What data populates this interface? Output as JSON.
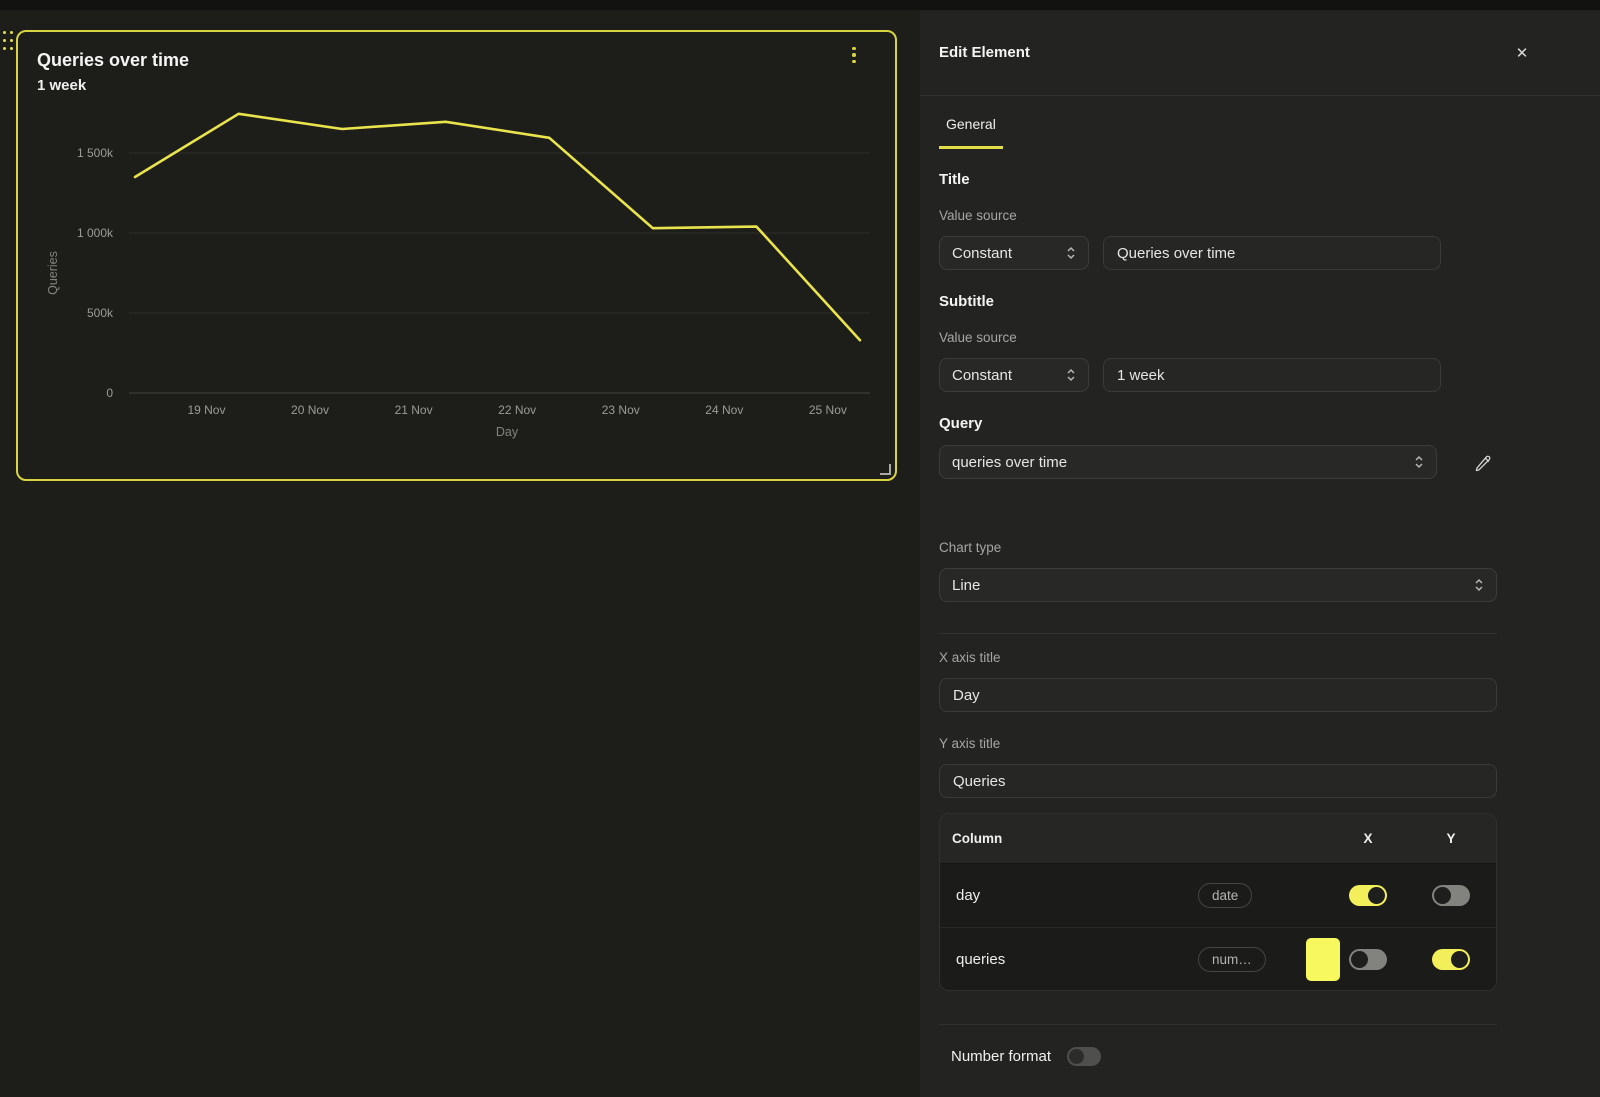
{
  "chart_data": {
    "type": "line",
    "title": "Queries over time",
    "subtitle": "1 week",
    "xlabel": "Day",
    "ylabel": "Queries",
    "x_ticks": [
      "19 Nov",
      "20 Nov",
      "21 Nov",
      "22 Nov",
      "23 Nov",
      "24 Nov",
      "25 Nov"
    ],
    "y_ticks": [
      {
        "value": 0,
        "label": "0"
      },
      {
        "value": 500000,
        "label": "500k"
      },
      {
        "value": 1000000,
        "label": "1 000k"
      },
      {
        "value": 1500000,
        "label": "1 500k"
      }
    ],
    "ylim": [
      0,
      1800000
    ],
    "grid": true,
    "legend": false,
    "series": [
      {
        "name": "queries",
        "color": "#e9e44c",
        "values": [
          1350000,
          1745000,
          1650000,
          1695000,
          1595000,
          1030000,
          1040000,
          330000
        ],
        "x_offset_days": -0.69
      }
    ]
  },
  "editor": {
    "title": "Edit Element",
    "icons": {
      "close": "✕"
    },
    "tabs": [
      {
        "label": "General",
        "active": true
      }
    ],
    "title_section": {
      "heading": "Title",
      "value_source_label": "Value source",
      "source": "Constant",
      "value": "Queries over time"
    },
    "subtitle_section": {
      "heading": "Subtitle",
      "value_source_label": "Value source",
      "source": "Constant",
      "value": "1 week"
    },
    "query_section": {
      "heading": "Query",
      "selected": "queries over time"
    },
    "chart_type": {
      "label": "Chart type",
      "selected": "Line"
    },
    "x_axis": {
      "label": "X axis title",
      "value": "Day"
    },
    "y_axis": {
      "label": "Y axis title",
      "value": "Queries"
    },
    "columns_table": {
      "headers": {
        "column": "Column",
        "x": "X",
        "y": "Y"
      },
      "rows": [
        {
          "name": "day",
          "type": "date",
          "swatch": null,
          "x_enabled": true,
          "y_enabled": false
        },
        {
          "name": "queries",
          "type": "num…",
          "swatch": "#f7f75e",
          "x_enabled": false,
          "y_enabled": true
        }
      ]
    },
    "number_format": {
      "label": "Number format",
      "enabled": false
    }
  },
  "colors": {
    "accent_yellow": "#e4df49",
    "selection_border": "#d8d342",
    "toggle_on": "#f2ef5a",
    "canvas_bg": "#1d1d1a",
    "panel_bg": "#232321"
  }
}
